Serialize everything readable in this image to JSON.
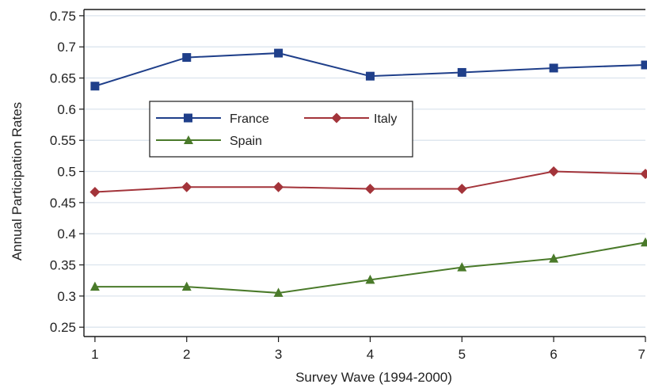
{
  "chart_data": {
    "type": "line",
    "title": "",
    "xlabel": "Survey Wave (1994-2000)",
    "ylabel": "Annual Participation Rates",
    "x": [
      1,
      2,
      3,
      4,
      5,
      6,
      7
    ],
    "xlim": [
      0.88,
      7
    ],
    "ylim": [
      0.235,
      0.76
    ],
    "xticks": [
      "1",
      "2",
      "3",
      "4",
      "5",
      "6",
      "7"
    ],
    "yticks": [
      "0.25",
      "0.3",
      "0.35",
      "0.4",
      "0.45",
      "0.5",
      "0.55",
      "0.6",
      "0.65",
      "0.7",
      "0.75"
    ],
    "grid": true,
    "legend_position": "upper-left-inside",
    "series": [
      {
        "name": "France",
        "color": "#1f3f8a",
        "marker": "square",
        "values": [
          0.637,
          0.683,
          0.69,
          0.653,
          0.659,
          0.666,
          0.671
        ]
      },
      {
        "name": "Italy",
        "color": "#a3343a",
        "marker": "diamond",
        "values": [
          0.467,
          0.475,
          0.475,
          0.472,
          0.472,
          0.5,
          0.496
        ]
      },
      {
        "name": "Spain",
        "color": "#4a7a2a",
        "marker": "triangle",
        "values": [
          0.315,
          0.315,
          0.305,
          0.326,
          0.346,
          0.36,
          0.386
        ]
      }
    ]
  }
}
